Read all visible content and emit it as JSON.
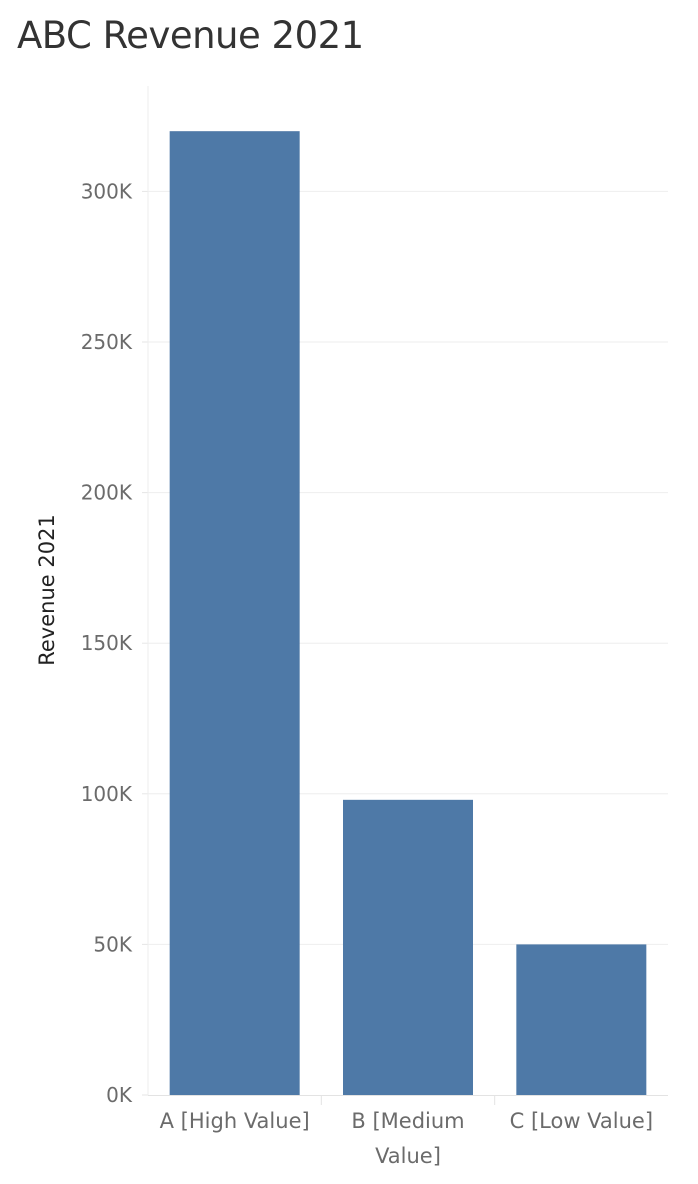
{
  "chart_data": {
    "type": "bar",
    "title": "ABC Revenue 2021",
    "xlabel": "",
    "ylabel": "Revenue 2021",
    "categories": [
      [
        "A [High Value]"
      ],
      [
        "B [Medium",
        "Value]"
      ],
      [
        "C [Low Value]"
      ]
    ],
    "values": [
      320000,
      98000,
      50000
    ],
    "ylim": [
      0,
      335000
    ],
    "yticks": [
      0,
      50000,
      100000,
      150000,
      200000,
      250000,
      300000
    ],
    "ytick_labels": [
      "0K",
      "50K",
      "100K",
      "150K",
      "200K",
      "250K",
      "300K"
    ],
    "grid": true,
    "bar_color": "#4e79a7",
    "gridline_color": "#eeeeee"
  }
}
